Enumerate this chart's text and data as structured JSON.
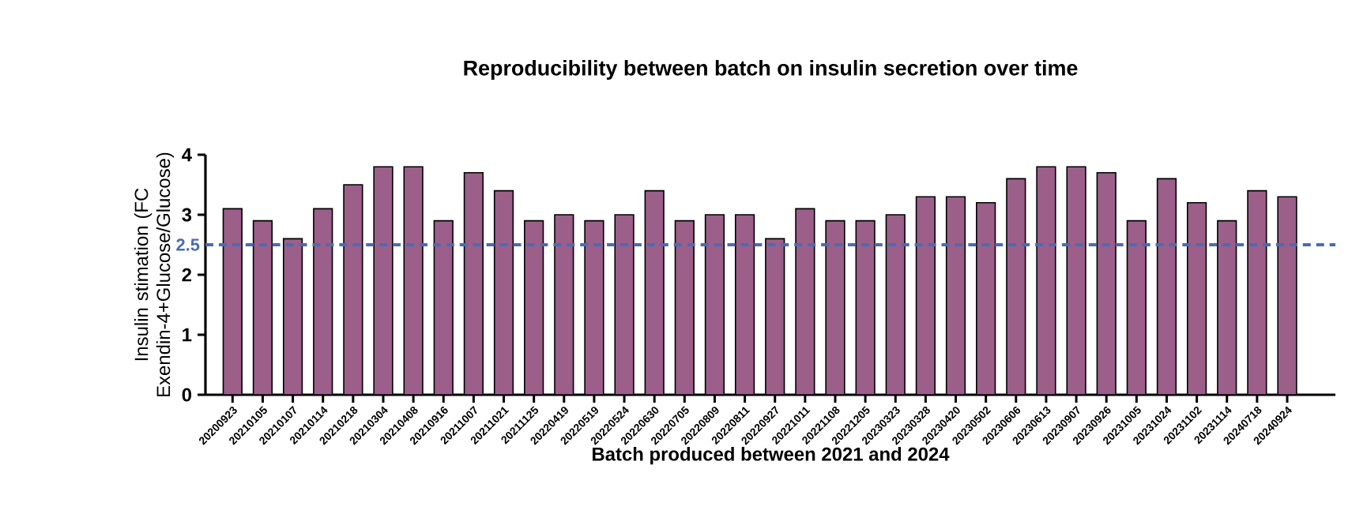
{
  "chart_data": {
    "type": "bar",
    "title": "Reproducibility between batch on insulin secretion over time",
    "xlabel": "Batch produced between 2021 and 2024",
    "ylabel": "Insulin stimation (FC Exendin-4+Glucose/Glucose)",
    "categories": [
      "20200923",
      "20210105",
      "20210107",
      "20210114",
      "20210218",
      "20210304",
      "20210408",
      "20210916",
      "20211007",
      "20211021",
      "20211125",
      "20220419",
      "20220519",
      "20220524",
      "20220630",
      "20220705",
      "20220809",
      "20220811",
      "20220927",
      "20221011",
      "20221108",
      "20221205",
      "20230323",
      "20230328",
      "20230420",
      "20230502",
      "20230606",
      "20230613",
      "20230907",
      "20230926",
      "20231005",
      "20231024",
      "20231102",
      "20231114",
      "20240718",
      "20240924"
    ],
    "values": [
      3.1,
      2.9,
      2.6,
      3.1,
      3.5,
      3.8,
      3.8,
      2.9,
      3.7,
      3.4,
      2.9,
      3.0,
      2.9,
      3.0,
      3.4,
      2.9,
      3.0,
      3.0,
      2.6,
      3.1,
      2.9,
      2.9,
      3.0,
      3.3,
      3.3,
      3.2,
      3.6,
      3.8,
      3.8,
      3.7,
      2.9,
      3.6,
      3.2,
      2.9,
      3.4,
      3.3
    ],
    "color": "#9b5f8a",
    "ylim": [
      0,
      4
    ],
    "yticks": [
      0,
      1,
      2,
      3,
      4
    ],
    "ref_lines": [
      {
        "axis": "y",
        "value": 2.5,
        "label": "2.5",
        "color": "#4a6bb5",
        "line_style": "dashed"
      }
    ],
    "grid": false
  }
}
